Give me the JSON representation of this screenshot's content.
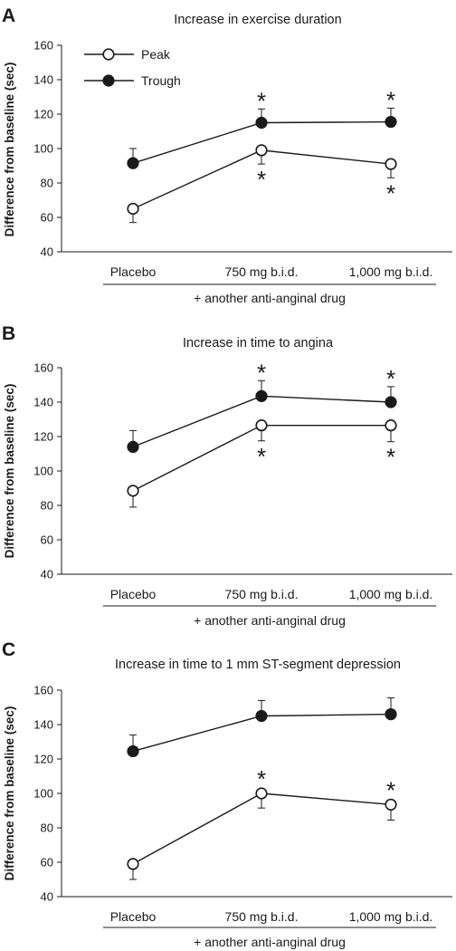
{
  "chart_data": [
    {
      "panel": "A",
      "type": "line",
      "title": "Increase in exercise duration",
      "ylabel": "Difference from baseline (sec)",
      "xlabel": "+ another anti-anginal drug",
      "categories": [
        "Placebo",
        "750 mg b.i.d.",
        "1,000 mg b.i.d."
      ],
      "ylim": [
        40,
        160
      ],
      "yticks": [
        "40",
        "60",
        "80",
        "100",
        "120",
        "140",
        "160"
      ],
      "legend": "top-left",
      "series": [
        {
          "name": "Peak",
          "marker": "open-circle",
          "values": [
            65,
            99,
            91
          ],
          "error": [
            8,
            8,
            8
          ],
          "significant": [
            false,
            true,
            true
          ],
          "star_position": "below"
        },
        {
          "name": "Trough",
          "marker": "filled-circle",
          "values": [
            91.5,
            115,
            115.5
          ],
          "error": [
            8.5,
            8,
            8
          ],
          "significant": [
            false,
            true,
            true
          ],
          "star_position": "above"
        }
      ],
      "annotation": "*"
    },
    {
      "panel": "B",
      "type": "line",
      "title": "Increase in time to angina",
      "ylabel": "Difference from baseline (sec)",
      "xlabel": "+ another anti-anginal drug",
      "categories": [
        "Placebo",
        "750 mg b.i.d.",
        "1,000 mg b.i.d."
      ],
      "ylim": [
        40,
        160
      ],
      "yticks": [
        "40",
        "60",
        "80",
        "100",
        "120",
        "140",
        "160"
      ],
      "series": [
        {
          "name": "Peak",
          "marker": "open-circle",
          "values": [
            88.5,
            126.5,
            126.5
          ],
          "error": [
            9.5,
            9,
            9.5
          ],
          "significant": [
            false,
            true,
            true
          ],
          "star_position": "below"
        },
        {
          "name": "Trough",
          "marker": "filled-circle",
          "values": [
            114,
            143.5,
            140
          ],
          "error": [
            9.5,
            9,
            9
          ],
          "significant": [
            false,
            true,
            true
          ],
          "star_position": "above"
        }
      ],
      "annotation": "*"
    },
    {
      "panel": "C",
      "type": "line",
      "title": "Increase in time to 1 mm ST-segment depression",
      "ylabel": "Difference from baseline (sec)",
      "xlabel": "+ another anti-anginal drug",
      "categories": [
        "Placebo",
        "750 mg b.i.d.",
        "1,000 mg b.i.d."
      ],
      "ylim": [
        40,
        160
      ],
      "yticks": [
        "40",
        "60",
        "80",
        "100",
        "120",
        "140",
        "160"
      ],
      "series": [
        {
          "name": "Peak",
          "marker": "open-circle",
          "values": [
            59,
            100,
            93.5
          ],
          "error": [
            9,
            8.5,
            9
          ],
          "significant": [
            false,
            true,
            true
          ],
          "star_position": "above"
        },
        {
          "name": "Trough",
          "marker": "filled-circle",
          "values": [
            124.5,
            145,
            146
          ],
          "error": [
            9.5,
            9,
            9.5
          ],
          "significant": [
            false,
            false,
            false
          ],
          "star_position": "above"
        }
      ],
      "annotation": "*"
    }
  ]
}
